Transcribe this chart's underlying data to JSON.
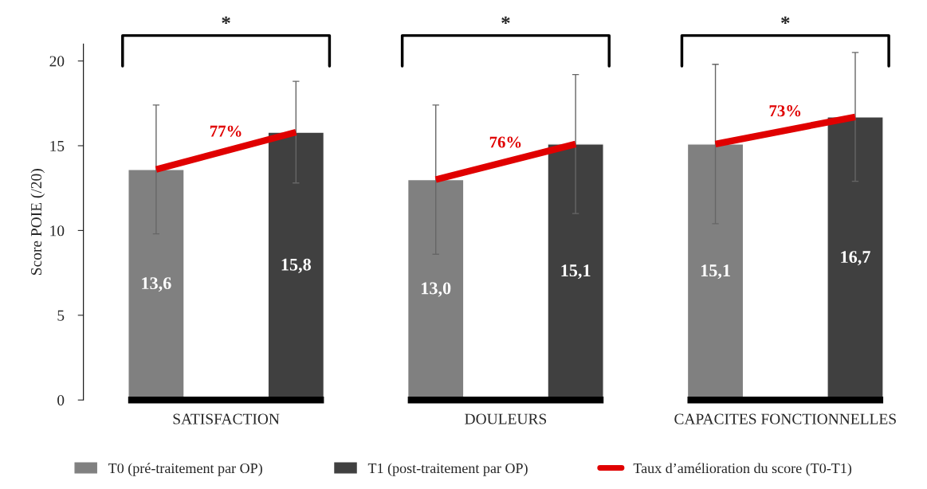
{
  "chart_data": {
    "type": "bar",
    "ylabel": "Score POIE (/20)",
    "categories": [
      "SATISFACTION",
      "DOULEURS",
      "CAPACITES FONCTIONNELLES"
    ],
    "series": [
      {
        "name": "T0 (pré-traitement par OP)",
        "color": "#808080",
        "values": [
          13.6,
          13.0,
          15.1
        ],
        "errors": [
          3.8,
          4.4,
          4.7
        ],
        "value_labels": [
          "13,6",
          "13,0",
          "15,1"
        ]
      },
      {
        "name": "T1 (post-traitement par OP)",
        "color": "#404040",
        "values": [
          15.8,
          15.1,
          16.7
        ],
        "errors": [
          3.0,
          4.1,
          3.8
        ],
        "value_labels": [
          "15,8",
          "15,1",
          "16,7"
        ]
      },
      {
        "type": "line",
        "name": "Taux d’amélioration du score (T0-T1)",
        "color": "#e00000",
        "values": [
          null,
          null,
          null
        ]
      }
    ],
    "annotations": [
      "77%",
      "76%",
      "73%",
      "*",
      "*",
      "*"
    ],
    "ylim": [
      0,
      21
    ],
    "yticks": [
      0,
      5,
      10,
      15,
      20
    ],
    "legend": "bottom"
  }
}
